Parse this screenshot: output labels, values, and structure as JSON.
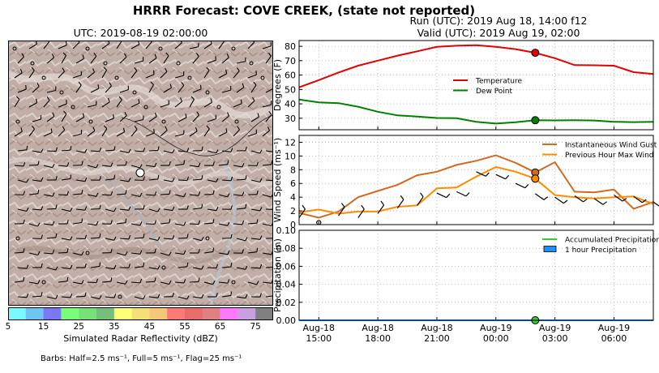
{
  "header": {
    "title": "HRRR Forecast: COVE CREEK, (state not reported)",
    "run": "Run (UTC): 2019 Aug 18, 14:00 f12",
    "valid": "Valid (UTC): 2019 Aug 19, 02:00"
  },
  "map": {
    "title": "UTC: 2019-08-19 02:00:00",
    "colorbar_label": "Simulated Radar Reflectivity (dBZ)",
    "colorbar_ticks": [
      "5",
      "15",
      "25",
      "35",
      "45",
      "55",
      "65",
      "75"
    ],
    "colorbar_colors": [
      "#7af9ff",
      "#6fc4f2",
      "#7a78f5",
      "#7aff7a",
      "#78e078",
      "#72c07a",
      "#ffff78",
      "#f5e078",
      "#f5c878",
      "#ff7878",
      "#e86c6c",
      "#e08080",
      "#ff78ff",
      "#c8a0e0",
      "#808080"
    ],
    "barbs_note": "Barbs: Half=2.5 ms⁻¹, Full=5 ms⁻¹, Flag=25 ms⁻¹"
  },
  "chart_data": [
    {
      "type": "line",
      "panel": "temperature",
      "ylabel": "Degrees (F)",
      "ylim": [
        22,
        84
      ],
      "yticks": [
        30,
        40,
        50,
        60,
        70,
        80
      ],
      "x": [
        "14:00",
        "15:00",
        "16:00",
        "17:00",
        "18:00",
        "19:00",
        "20:00",
        "21:00",
        "22:00",
        "23:00",
        "00:00",
        "01:00",
        "02:00",
        "03:00",
        "04:00",
        "05:00",
        "06:00",
        "07:00",
        "08:00"
      ],
      "series": [
        {
          "name": "Temperature",
          "color": "#e30000",
          "values": [
            51.5,
            56.5,
            61.8,
            66.5,
            70.0,
            73.5,
            76.5,
            79.6,
            80.4,
            80.8,
            79.6,
            78.0,
            75.5,
            71.7,
            66.9,
            66.8,
            66.5,
            62.0,
            60.7
          ]
        },
        {
          "name": "Dew Point",
          "color": "#008000",
          "values": [
            43.0,
            41.0,
            40.5,
            38.0,
            34.5,
            32.0,
            31.2,
            30.2,
            30.0,
            27.5,
            26.3,
            27.2,
            28.6,
            28.5,
            28.6,
            28.4,
            27.5,
            27.3,
            27.5
          ]
        }
      ],
      "marker": {
        "x": "02:00",
        "values": [
          75.5,
          28.6
        ]
      },
      "legend_position": "center-right"
    },
    {
      "type": "line",
      "panel": "wind",
      "ylabel": "Wind Speed (ms⁻¹)",
      "ylim": [
        0,
        13
      ],
      "yticks": [
        0,
        2,
        4,
        6,
        8,
        10,
        12
      ],
      "x": [
        "14:00",
        "15:00",
        "16:00",
        "17:00",
        "18:00",
        "19:00",
        "20:00",
        "21:00",
        "22:00",
        "23:00",
        "00:00",
        "01:00",
        "02:00",
        "03:00",
        "04:00",
        "05:00",
        "06:00",
        "07:00",
        "08:00"
      ],
      "series": [
        {
          "name": "Instantaneous Wind Gust",
          "color": "#d2691e",
          "values": [
            1.7,
            1.0,
            1.9,
            4.0,
            4.9,
            5.8,
            7.2,
            7.7,
            8.7,
            9.3,
            10.1,
            9.0,
            7.6,
            9.1,
            4.8,
            4.7,
            5.1,
            2.3,
            3.3
          ]
        },
        {
          "name": "Previous Hour Max Wind",
          "color": "#ff8c00",
          "values": [
            1.8,
            2.2,
            1.6,
            1.9,
            1.9,
            2.6,
            2.8,
            5.3,
            5.4,
            7.0,
            8.4,
            7.7,
            6.7,
            4.3,
            4.0,
            3.8,
            4.0,
            4.1,
            3.0
          ]
        }
      ],
      "barb_speeds": [
        1.0,
        0.3,
        1.3,
        1.0,
        1.6,
        2.4,
        2.8,
        4.6,
        4.8,
        7.7,
        7.3,
        6.0,
        4.5,
        4.0,
        4.2,
        3.8,
        4.3,
        4.1,
        3.3
      ],
      "marker": {
        "x": "02:00",
        "values": [
          7.6,
          6.7
        ]
      },
      "legend_position": "top-right"
    },
    {
      "type": "line",
      "panel": "precipitation",
      "ylabel": "Precipitation (in)",
      "ylim": [
        0,
        0.1
      ],
      "yticks": [
        "0.00",
        "0.02",
        "0.04",
        "0.06",
        "0.08",
        "0.10"
      ],
      "x": [
        "14:00",
        "15:00",
        "16:00",
        "17:00",
        "18:00",
        "19:00",
        "20:00",
        "21:00",
        "22:00",
        "23:00",
        "00:00",
        "01:00",
        "02:00",
        "03:00",
        "04:00",
        "05:00",
        "06:00",
        "07:00",
        "08:00"
      ],
      "series": [
        {
          "name": "Accumulated Precipitation",
          "color": "#33cc33",
          "values": [
            0,
            0,
            0,
            0,
            0,
            0,
            0,
            0,
            0,
            0,
            0,
            0,
            0,
            0,
            0,
            0,
            0,
            0,
            0
          ]
        },
        {
          "name": "1 hour Precipitation",
          "color": "#1e90ff",
          "values": [
            0,
            0,
            0,
            0,
            0,
            0,
            0,
            0,
            0,
            0,
            0,
            0,
            0,
            0,
            0,
            0,
            0,
            0,
            0
          ]
        }
      ],
      "xtick_labels": [
        {
          "x": "15:00",
          "day": "Aug-18",
          "time": "15:00"
        },
        {
          "x": "18:00",
          "day": "Aug-18",
          "time": "18:00"
        },
        {
          "x": "21:00",
          "day": "Aug-18",
          "time": "21:00"
        },
        {
          "x": "00:00",
          "day": "Aug-19",
          "time": "00:00"
        },
        {
          "x": "03:00",
          "day": "Aug-19",
          "time": "03:00"
        },
        {
          "x": "06:00",
          "day": "Aug-19",
          "time": "06:00"
        }
      ],
      "marker": {
        "x": "02:00",
        "values": [
          0
        ]
      },
      "legend_position": "top-right"
    }
  ]
}
